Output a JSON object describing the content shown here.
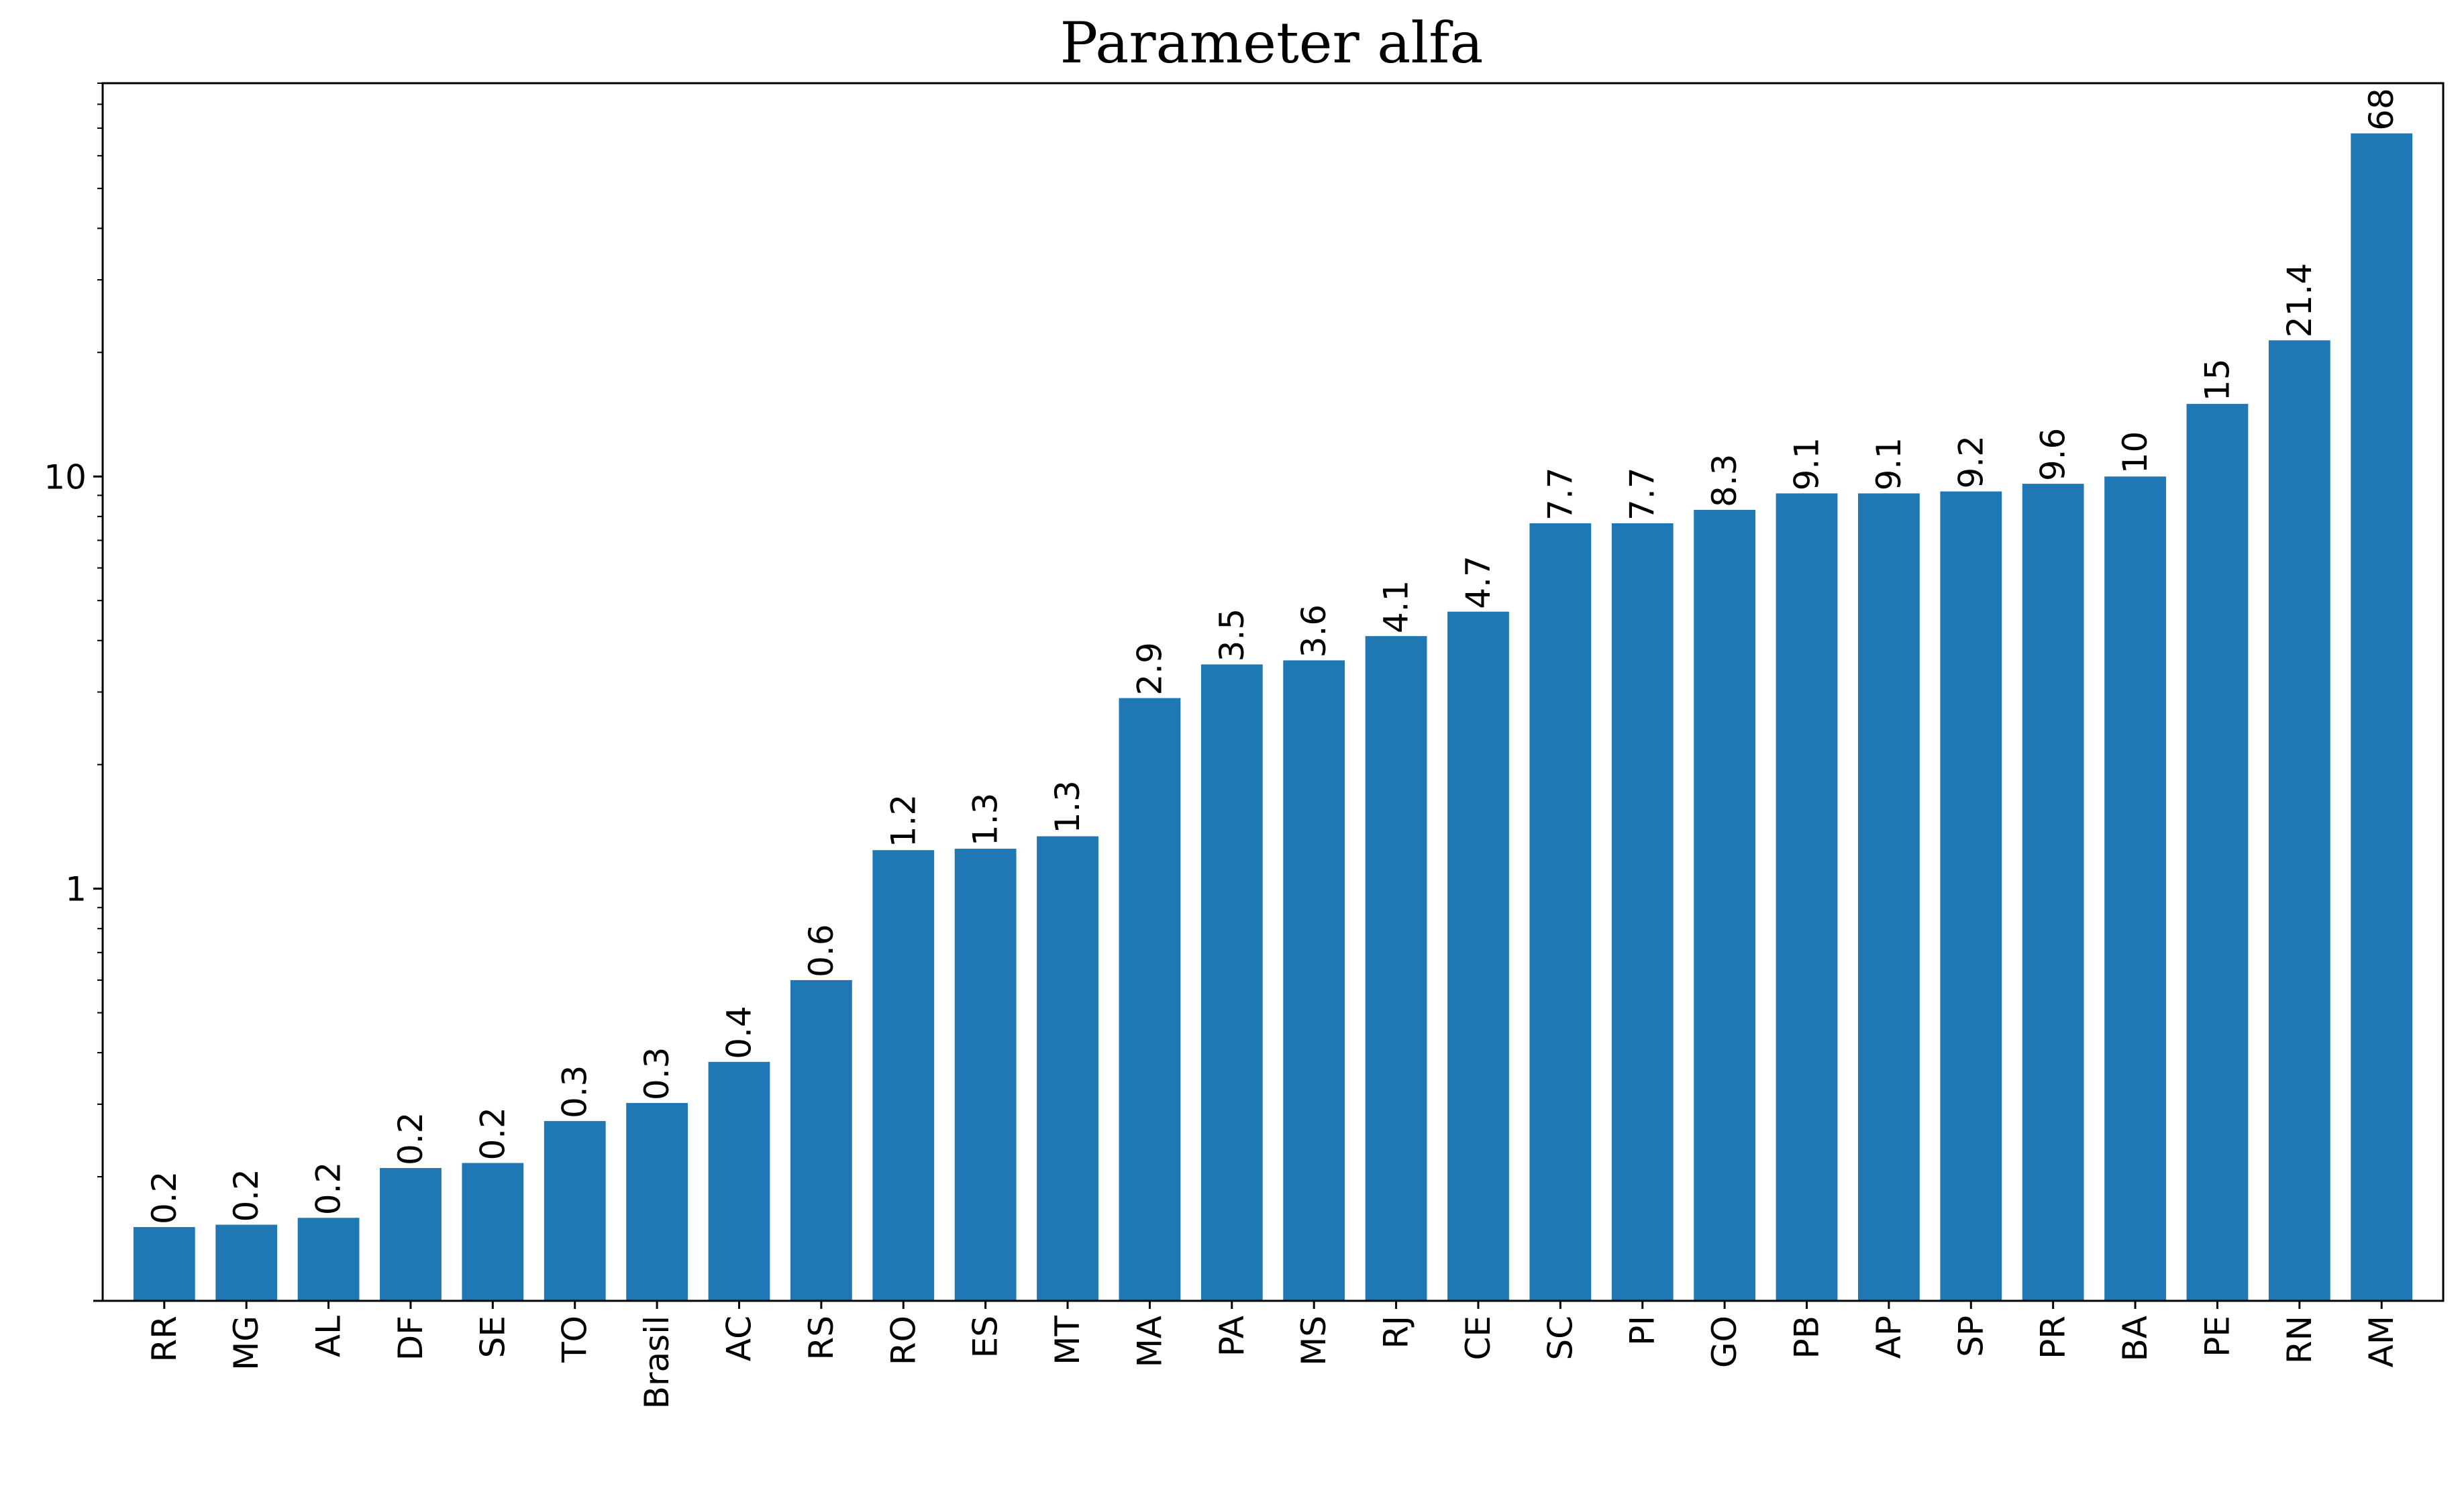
{
  "chart_data": {
    "type": "bar",
    "title": "Parameter alfa",
    "xlabel": "",
    "ylabel": "",
    "yscale": "log",
    "ylim": [
      0.1,
      90
    ],
    "ytick_values": [
      1,
      10
    ],
    "ytick_labels": [
      "1",
      "10"
    ],
    "grid": false,
    "legend": "none",
    "bar_color": "#1f77b4",
    "categories": [
      "RR",
      "MG",
      "AL",
      "DF",
      "SE",
      "TO",
      "Brasil",
      "AC",
      "RS",
      "RO",
      "ES",
      "MT",
      "MA",
      "PA",
      "MS",
      "RJ",
      "CE",
      "SC",
      "PI",
      "GO",
      "PB",
      "AP",
      "SP",
      "PR",
      "BA",
      "PE",
      "RN",
      "AM"
    ],
    "values": [
      0.151,
      0.153,
      0.159,
      0.21,
      0.216,
      0.273,
      0.302,
      0.38,
      0.6,
      1.24,
      1.25,
      1.34,
      2.9,
      3.5,
      3.58,
      4.1,
      4.7,
      7.7,
      7.7,
      8.3,
      9.1,
      9.1,
      9.2,
      9.6,
      10.0,
      15.0,
      21.4,
      68.0
    ],
    "data_labels": [
      "0.2",
      "0.2",
      "0.2",
      "0.2",
      "0.2",
      "0.3",
      "0.3",
      "0.4",
      "0.6",
      "1.2",
      "1.3",
      "1.3",
      "2.9",
      "3.5",
      "3.6",
      "4.1",
      "4.7",
      "7.7",
      "7.7",
      "8.3",
      "9.1",
      "9.1",
      "9.2",
      "9.6",
      "10",
      "15",
      "21.4",
      "68"
    ]
  }
}
